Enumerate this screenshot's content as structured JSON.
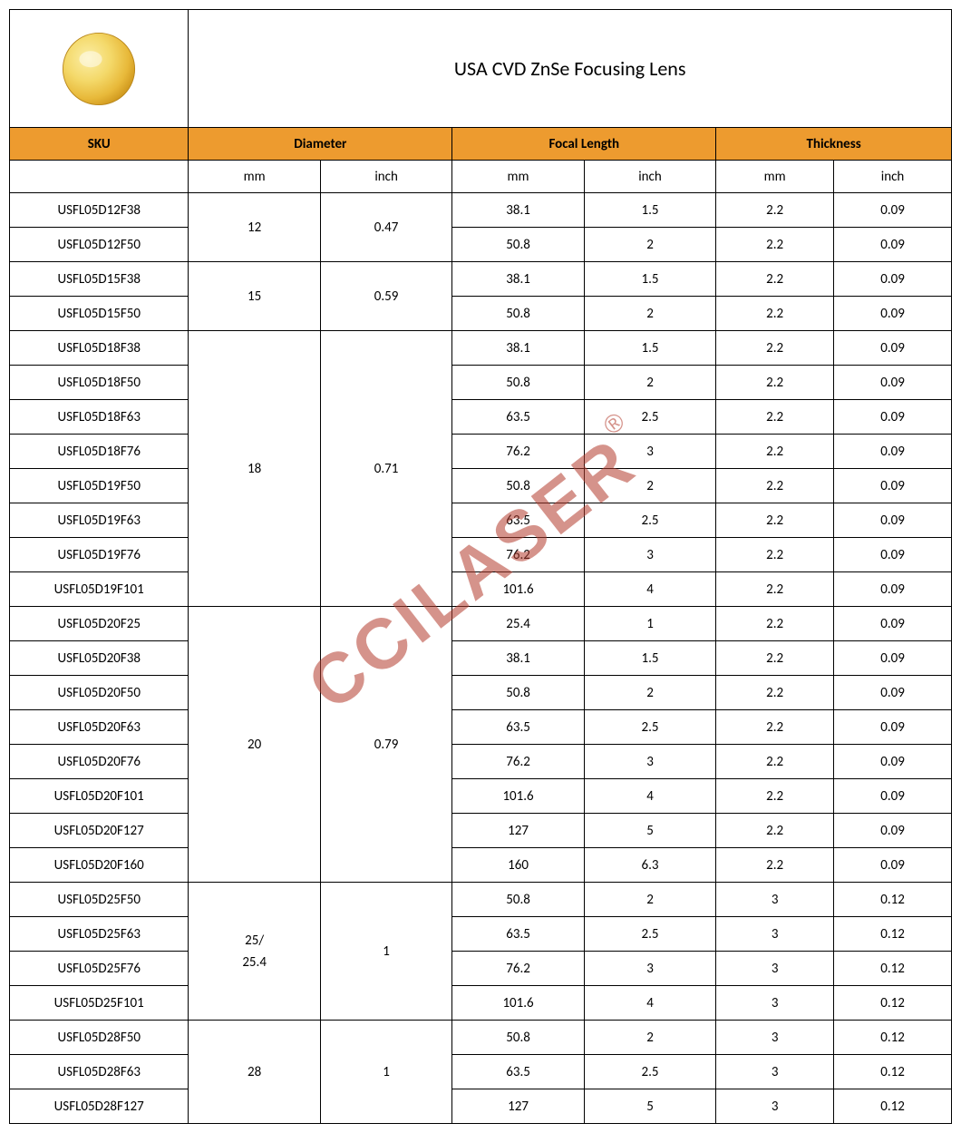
{
  "title": "USA CVD ZnSe Focusing Lens",
  "watermark": "CCILASER",
  "watermark_symbol": "®",
  "lens_colors": {
    "outer": "#d19a1f",
    "mid": "#e8b93a",
    "inner": "#f4d96a",
    "highlight": "#fbeea6"
  },
  "colors": {
    "header_bg": "#ed9b2f",
    "border": "#000000",
    "text": "#000000",
    "watermark": "#b43c2e"
  },
  "headers": {
    "sku": "SKU",
    "diameter": "Diameter",
    "focal": "Focal Length",
    "thickness": "Thickness"
  },
  "units": {
    "mm": "mm",
    "inch": "inch"
  },
  "groups": [
    {
      "dia_mm": "12",
      "dia_in": "0.47",
      "rows": [
        {
          "sku": "USFL05D12F38",
          "f_mm": "38.1",
          "f_in": "1.5",
          "t_mm": "2.2",
          "t_in": "0.09"
        },
        {
          "sku": "USFL05D12F50",
          "f_mm": "50.8",
          "f_in": "2",
          "t_mm": "2.2",
          "t_in": "0.09"
        }
      ]
    },
    {
      "dia_mm": "15",
      "dia_in": "0.59",
      "rows": [
        {
          "sku": "USFL05D15F38",
          "f_mm": "38.1",
          "f_in": "1.5",
          "t_mm": "2.2",
          "t_in": "0.09"
        },
        {
          "sku": "USFL05D15F50",
          "f_mm": "50.8",
          "f_in": "2",
          "t_mm": "2.2",
          "t_in": "0.09"
        }
      ]
    },
    {
      "dia_mm": "18",
      "dia_in": "0.71",
      "rows": [
        {
          "sku": "USFL05D18F38",
          "f_mm": "38.1",
          "f_in": "1.5",
          "t_mm": "2.2",
          "t_in": "0.09"
        },
        {
          "sku": "USFL05D18F50",
          "f_mm": "50.8",
          "f_in": "2",
          "t_mm": "2.2",
          "t_in": "0.09"
        },
        {
          "sku": "USFL05D18F63",
          "f_mm": "63.5",
          "f_in": "2.5",
          "t_mm": "2.2",
          "t_in": "0.09"
        },
        {
          "sku": "USFL05D18F76",
          "f_mm": "76.2",
          "f_in": "3",
          "t_mm": "2.2",
          "t_in": "0.09"
        },
        {
          "sku": "USFL05D19F50",
          "f_mm": "50.8",
          "f_in": "2",
          "t_mm": "2.2",
          "t_in": "0.09"
        },
        {
          "sku": "USFL05D19F63",
          "f_mm": "63.5",
          "f_in": "2.5",
          "t_mm": "2.2",
          "t_in": "0.09"
        },
        {
          "sku": "USFL05D19F76",
          "f_mm": "76.2",
          "f_in": "3",
          "t_mm": "2.2",
          "t_in": "0.09"
        },
        {
          "sku": "USFL05D19F101",
          "f_mm": "101.6",
          "f_in": "4",
          "t_mm": "2.2",
          "t_in": "0.09"
        }
      ]
    },
    {
      "dia_mm": "20",
      "dia_in": "0.79",
      "rows": [
        {
          "sku": "USFL05D20F25",
          "f_mm": "25.4",
          "f_in": "1",
          "t_mm": "2.2",
          "t_in": "0.09"
        },
        {
          "sku": "USFL05D20F38",
          "f_mm": "38.1",
          "f_in": "1.5",
          "t_mm": "2.2",
          "t_in": "0.09"
        },
        {
          "sku": "USFL05D20F50",
          "f_mm": "50.8",
          "f_in": "2",
          "t_mm": "2.2",
          "t_in": "0.09"
        },
        {
          "sku": "USFL05D20F63",
          "f_mm": "63.5",
          "f_in": "2.5",
          "t_mm": "2.2",
          "t_in": "0.09"
        },
        {
          "sku": "USFL05D20F76",
          "f_mm": "76.2",
          "f_in": "3",
          "t_mm": "2.2",
          "t_in": "0.09"
        },
        {
          "sku": "USFL05D20F101",
          "f_mm": "101.6",
          "f_in": "4",
          "t_mm": "2.2",
          "t_in": "0.09"
        },
        {
          "sku": "USFL05D20F127",
          "f_mm": "127",
          "f_in": "5",
          "t_mm": "2.2",
          "t_in": "0.09"
        },
        {
          "sku": "USFL05D20F160",
          "f_mm": "160",
          "f_in": "6.3",
          "t_mm": "2.2",
          "t_in": "0.09"
        }
      ]
    },
    {
      "dia_mm": "25/\n25.4",
      "dia_in": "1",
      "rows": [
        {
          "sku": "USFL05D25F50",
          "f_mm": "50.8",
          "f_in": "2",
          "t_mm": "3",
          "t_in": "0.12"
        },
        {
          "sku": "USFL05D25F63",
          "f_mm": "63.5",
          "f_in": "2.5",
          "t_mm": "3",
          "t_in": "0.12"
        },
        {
          "sku": "USFL05D25F76",
          "f_mm": "76.2",
          "f_in": "3",
          "t_mm": "3",
          "t_in": "0.12"
        },
        {
          "sku": "USFL05D25F101",
          "f_mm": "101.6",
          "f_in": "4",
          "t_mm": "3",
          "t_in": "0.12"
        }
      ]
    },
    {
      "dia_mm": "28",
      "dia_in": "1",
      "rows": [
        {
          "sku": "USFL05D28F50",
          "f_mm": "50.8",
          "f_in": "2",
          "t_mm": "3",
          "t_in": "0.12"
        },
        {
          "sku": "USFL05D28F63",
          "f_mm": "63.5",
          "f_in": "2.5",
          "t_mm": "3",
          "t_in": "0.12"
        },
        {
          "sku": "USFL05D28F127",
          "f_mm": "127",
          "f_in": "5",
          "t_mm": "3",
          "t_in": "0.12"
        }
      ]
    }
  ]
}
